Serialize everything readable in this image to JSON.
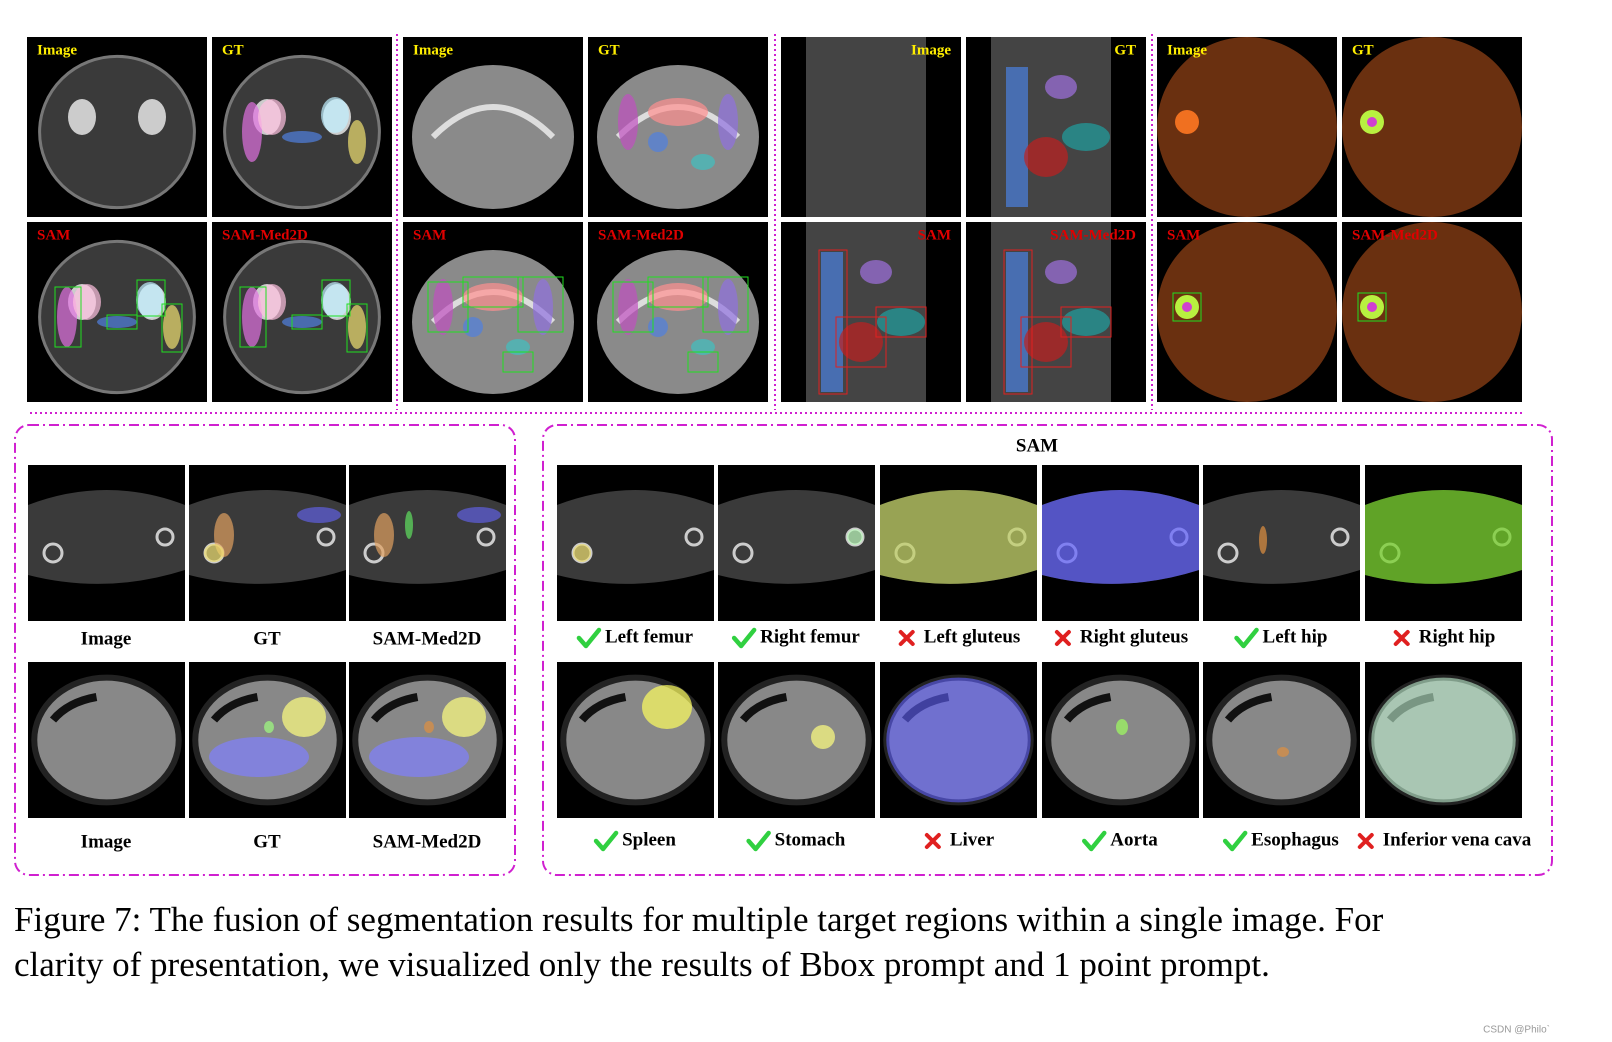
{
  "top_groups": [
    {
      "labels": [
        "Image",
        "GT",
        "SAM",
        "SAM-Med2D"
      ]
    },
    {
      "labels": [
        "Image",
        "GT",
        "SAM",
        "SAM-Med2D"
      ]
    },
    {
      "labels": [
        "Image",
        "GT",
        "SAM",
        "SAM-Med2D"
      ]
    },
    {
      "labels": [
        "Image",
        "GT",
        "SAM",
        "SAM-Med2D"
      ]
    }
  ],
  "bottom_left": {
    "rows": [
      [
        "Image",
        "GT",
        "SAM-Med2D"
      ],
      [
        "Image",
        "GT",
        "SAM-Med2D"
      ]
    ]
  },
  "bottom_right": {
    "title": "SAM",
    "rows": [
      [
        {
          "label": "Left femur",
          "result": "correct"
        },
        {
          "label": "Right femur",
          "result": "correct"
        },
        {
          "label": "Left gluteus",
          "result": "wrong"
        },
        {
          "label": "Right gluteus",
          "result": "wrong"
        },
        {
          "label": "Left hip",
          "result": "correct"
        },
        {
          "label": "Right hip",
          "result": "wrong"
        }
      ],
      [
        {
          "label": "Spleen",
          "result": "correct"
        },
        {
          "label": "Stomach",
          "result": "correct"
        },
        {
          "label": "Liver",
          "result": "wrong"
        },
        {
          "label": "Aorta",
          "result": "correct"
        },
        {
          "label": "Esophagus",
          "result": "correct"
        },
        {
          "label": "Inferior vena cava",
          "result": "wrong"
        }
      ]
    ]
  },
  "caption": [
    "Figure 7: The fusion of segmentation results for multiple target regions within a single image. For",
    "clarity of presentation, we visualized only the results of Bbox prompt and 1 point prompt."
  ],
  "watermark": "CSDN @Philo`"
}
